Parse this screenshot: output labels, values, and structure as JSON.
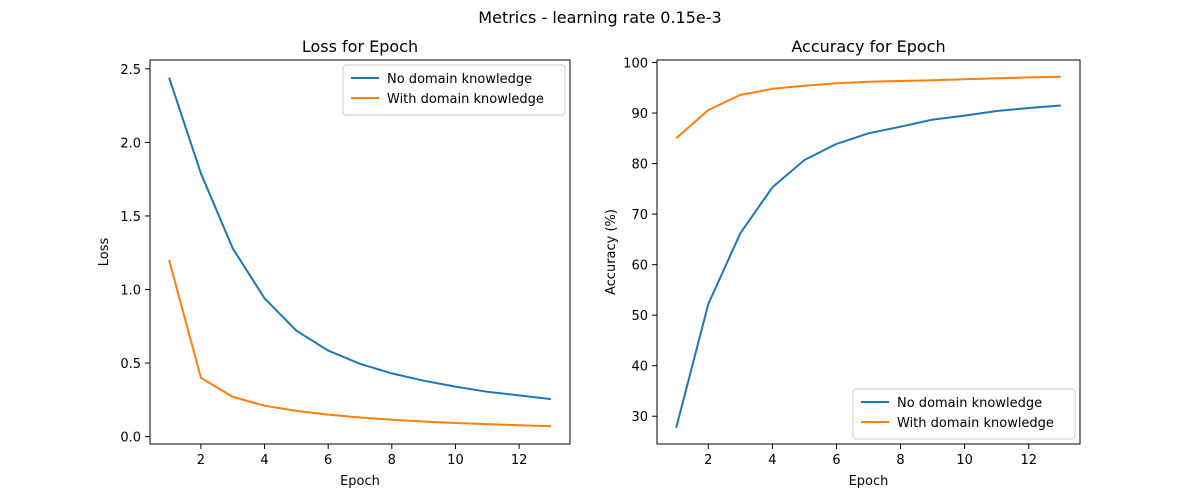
{
  "figure": {
    "suptitle": "Metrics - learning rate 0.15e-3"
  },
  "colors": {
    "series_1": "#1f77b4",
    "series_2": "#ff7f0e",
    "axes": "#000000",
    "legend_border": "#cccccc",
    "background": "#ffffff"
  },
  "chart_data": [
    {
      "type": "line",
      "title": "Loss for Epoch",
      "xlabel": "Epoch",
      "ylabel": "Loss",
      "xlim": [
        0.4,
        13.6
      ],
      "ylim": [
        -0.05,
        2.56
      ],
      "xticks": [
        "2",
        "4",
        "6",
        "8",
        "10",
        "12"
      ],
      "yticks": [
        "0.0",
        "0.5",
        "1.0",
        "1.5",
        "2.0",
        "2.5"
      ],
      "grid": false,
      "legend": "top-right",
      "x": [
        1,
        2,
        3,
        4,
        5,
        6,
        7,
        8,
        9,
        10,
        11,
        12,
        13
      ],
      "series": [
        {
          "name": "No domain knowledge",
          "color": "#1f77b4",
          "values": [
            2.44,
            1.79,
            1.28,
            0.94,
            0.72,
            0.585,
            0.495,
            0.43,
            0.38,
            0.34,
            0.305,
            0.28,
            0.255
          ]
        },
        {
          "name": "With domain knowledge",
          "color": "#ff7f0e",
          "values": [
            1.2,
            0.4,
            0.27,
            0.21,
            0.175,
            0.15,
            0.13,
            0.115,
            0.103,
            0.093,
            0.085,
            0.077,
            0.07
          ]
        }
      ]
    },
    {
      "type": "line",
      "title": "Accuracy for Epoch",
      "xlabel": "Epoch",
      "ylabel": "Accuracy (%)",
      "xlim": [
        0.4,
        13.6
      ],
      "ylim": [
        24.5,
        100.5
      ],
      "xticks": [
        "2",
        "4",
        "6",
        "8",
        "10",
        "12"
      ],
      "yticks": [
        "30",
        "40",
        "50",
        "60",
        "70",
        "80",
        "90",
        "100"
      ],
      "grid": false,
      "legend": "bottom-right",
      "x": [
        1,
        2,
        3,
        4,
        5,
        6,
        7,
        8,
        9,
        10,
        11,
        12,
        13
      ],
      "series": [
        {
          "name": "No domain knowledge",
          "color": "#1f77b4",
          "values": [
            27.7,
            52.2,
            66.2,
            75.3,
            80.7,
            83.9,
            86.0,
            87.3,
            88.7,
            89.5,
            90.4,
            91.0,
            91.5
          ]
        },
        {
          "name": "With domain knowledge",
          "color": "#ff7f0e",
          "values": [
            85.0,
            90.6,
            93.6,
            94.8,
            95.4,
            95.9,
            96.2,
            96.35,
            96.5,
            96.7,
            96.9,
            97.05,
            97.2
          ]
        }
      ]
    }
  ]
}
